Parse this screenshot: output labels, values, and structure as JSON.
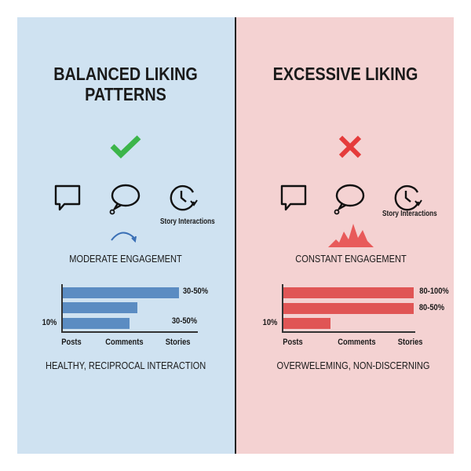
{
  "left": {
    "title_line1": "BALANCED LIKING",
    "title_line2": "PATTERNS",
    "status_icon": "check-icon",
    "status_color": "#3cb54a",
    "icons": [
      "chat-square-icon",
      "chat-bubble-icon",
      "clock-refresh-icon"
    ],
    "story_label": "Story Interactions",
    "engagement_icon": "curved-arrow-icon",
    "engagement_label": "MODERATE ENGAGEMENT",
    "bar_color": "#5b8cc2",
    "chart": {
      "bar_fill_fractions": [
        0.89,
        0.57,
        0.51
      ],
      "value_labels": [
        "30-50%",
        "30-50%"
      ],
      "axis_label": "10%",
      "categories": [
        "Posts",
        "Comments",
        "Stories"
      ]
    },
    "footer": "HEALTHY, RECIPROCAL INTERACTION"
  },
  "right": {
    "title": "EXCESSIVE LIKING",
    "status_icon": "x-icon",
    "status_color": "#e53b3b",
    "icons": [
      "chat-square-icon",
      "chat-bubble-icon",
      "clock-refresh-icon"
    ],
    "story_label": "Story Interactions",
    "engagement_icon": "zigzag-spike-icon",
    "engagement_label": "CONSTANT ENGAGEMENT",
    "bar_color": "#e05555",
    "chart": {
      "bar_fill_fractions": [
        1.0,
        1.0,
        0.36
      ],
      "value_labels": [
        "80-100%",
        "80-50%"
      ],
      "axis_label": "10%",
      "categories": [
        "Posts",
        "Comments",
        "Stories"
      ]
    },
    "footer": "OVERWELEMING, NON-DISCERNING"
  }
}
